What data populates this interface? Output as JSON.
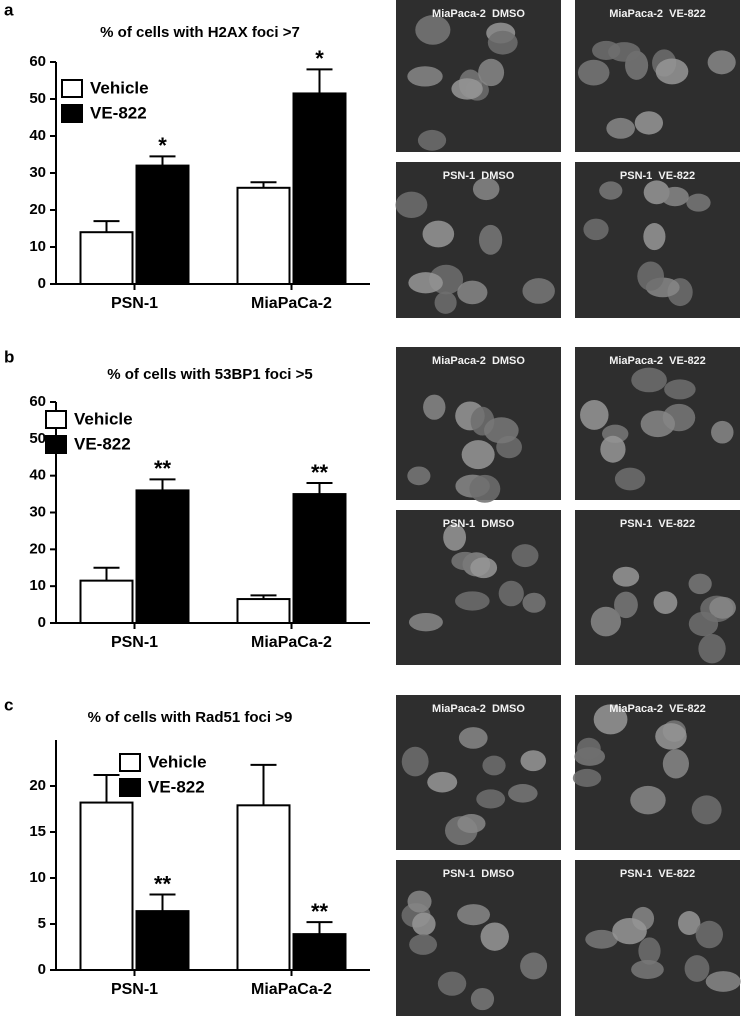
{
  "panels": [
    {
      "label": "a",
      "images": [
        "MiaPaca-2  DMSO",
        "MiaPaca-2  VE-822",
        "PSN-1  DMSO",
        "PSN-1  VE-822"
      ]
    },
    {
      "label": "b",
      "images": [
        "MiaPaca-2  DMSO",
        "MiaPaca-2  VE-822",
        "PSN-1  DMSO",
        "PSN-1  VE-822"
      ]
    },
    {
      "label": "c",
      "images": [
        "MiaPaca-2  DMSO",
        "MiaPaca-2  VE-822",
        "PSN-1  DMSO",
        "PSN-1  VE-822"
      ]
    }
  ],
  "chart_data": [
    {
      "type": "bar",
      "title": "% of cells with H2AX foci >7",
      "categories": [
        "PSN-1",
        "MiaPaCa-2"
      ],
      "series": [
        {
          "name": "Vehicle",
          "color": "#ffffff",
          "values": [
            14,
            26
          ],
          "errors": [
            3,
            1.5
          ]
        },
        {
          "name": "VE-822",
          "color": "#000000",
          "values": [
            32,
            51.5
          ],
          "errors": [
            2.5,
            6.5
          ],
          "significance": [
            "*",
            "*"
          ]
        }
      ],
      "ylim": [
        0,
        60
      ],
      "yticks": [
        0,
        10,
        20,
        30,
        40,
        50,
        60
      ],
      "legend": "upper left"
    },
    {
      "type": "bar",
      "title": "% of cells with 53BP1 foci >5",
      "categories": [
        "PSN-1",
        "MiaPaCa-2"
      ],
      "series": [
        {
          "name": "Vehicle",
          "color": "#ffffff",
          "values": [
            11.5,
            6.5
          ],
          "errors": [
            3.5,
            1
          ]
        },
        {
          "name": "VE-822",
          "color": "#000000",
          "values": [
            36,
            35
          ],
          "errors": [
            3,
            3
          ],
          "significance": [
            "**",
            "**"
          ]
        }
      ],
      "ylim": [
        0,
        60
      ],
      "yticks": [
        0,
        10,
        20,
        30,
        40,
        50,
        60
      ],
      "legend": "upper left"
    },
    {
      "type": "bar",
      "title": "% of cells with Rad51 foci >9",
      "categories": [
        "PSN-1",
        "MiaPaCa-2"
      ],
      "series": [
        {
          "name": "Vehicle",
          "color": "#ffffff",
          "values": [
            18.2,
            17.9
          ],
          "errors": [
            3,
            4.4
          ]
        },
        {
          "name": "VE-822",
          "color": "#000000",
          "values": [
            6.4,
            3.9
          ],
          "errors": [
            1.8,
            1.3
          ],
          "significance": [
            "**",
            "**"
          ]
        }
      ],
      "ylim": [
        0,
        25
      ],
      "yticks": [
        0,
        5,
        10,
        15,
        20
      ],
      "legend": "upper center"
    }
  ]
}
